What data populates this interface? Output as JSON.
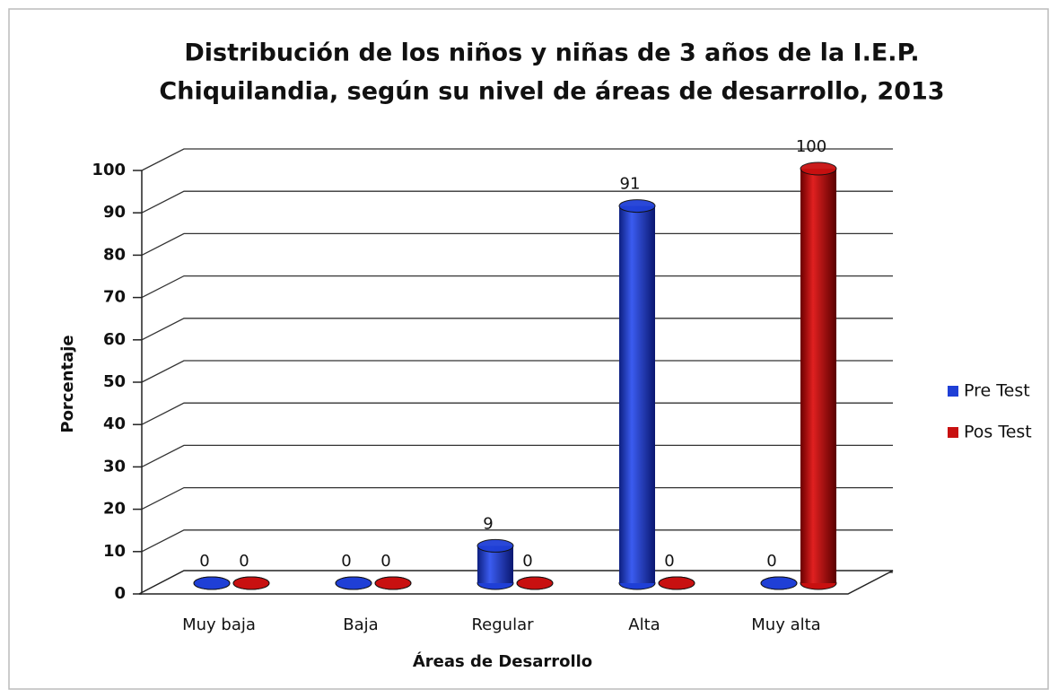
{
  "chart_data": {
    "type": "bar",
    "title": [
      "Distribución de los niños y niñas de 3 años de la I.E.P.",
      "Chiquilandia, según su nivel de áreas de desarrollo, 2013"
    ],
    "x_label": "Áreas de Desarrollo",
    "y_label": "Porcentaje",
    "categories": [
      "Muy baja",
      "Baja",
      "Regular",
      "Alta",
      "Muy alta"
    ],
    "series": [
      {
        "name": "Pre Test",
        "color": "#1f3fd6",
        "values": [
          0,
          0,
          9,
          91,
          0
        ]
      },
      {
        "name": "Pos Test",
        "color": "#c81010",
        "values": [
          0,
          0,
          0,
          0,
          100
        ]
      }
    ],
    "ylim": [
      0,
      100
    ],
    "yticks": [
      0,
      10,
      20,
      30,
      40,
      50,
      60,
      70,
      80,
      90,
      100
    ],
    "grid": true,
    "legend": "right"
  }
}
